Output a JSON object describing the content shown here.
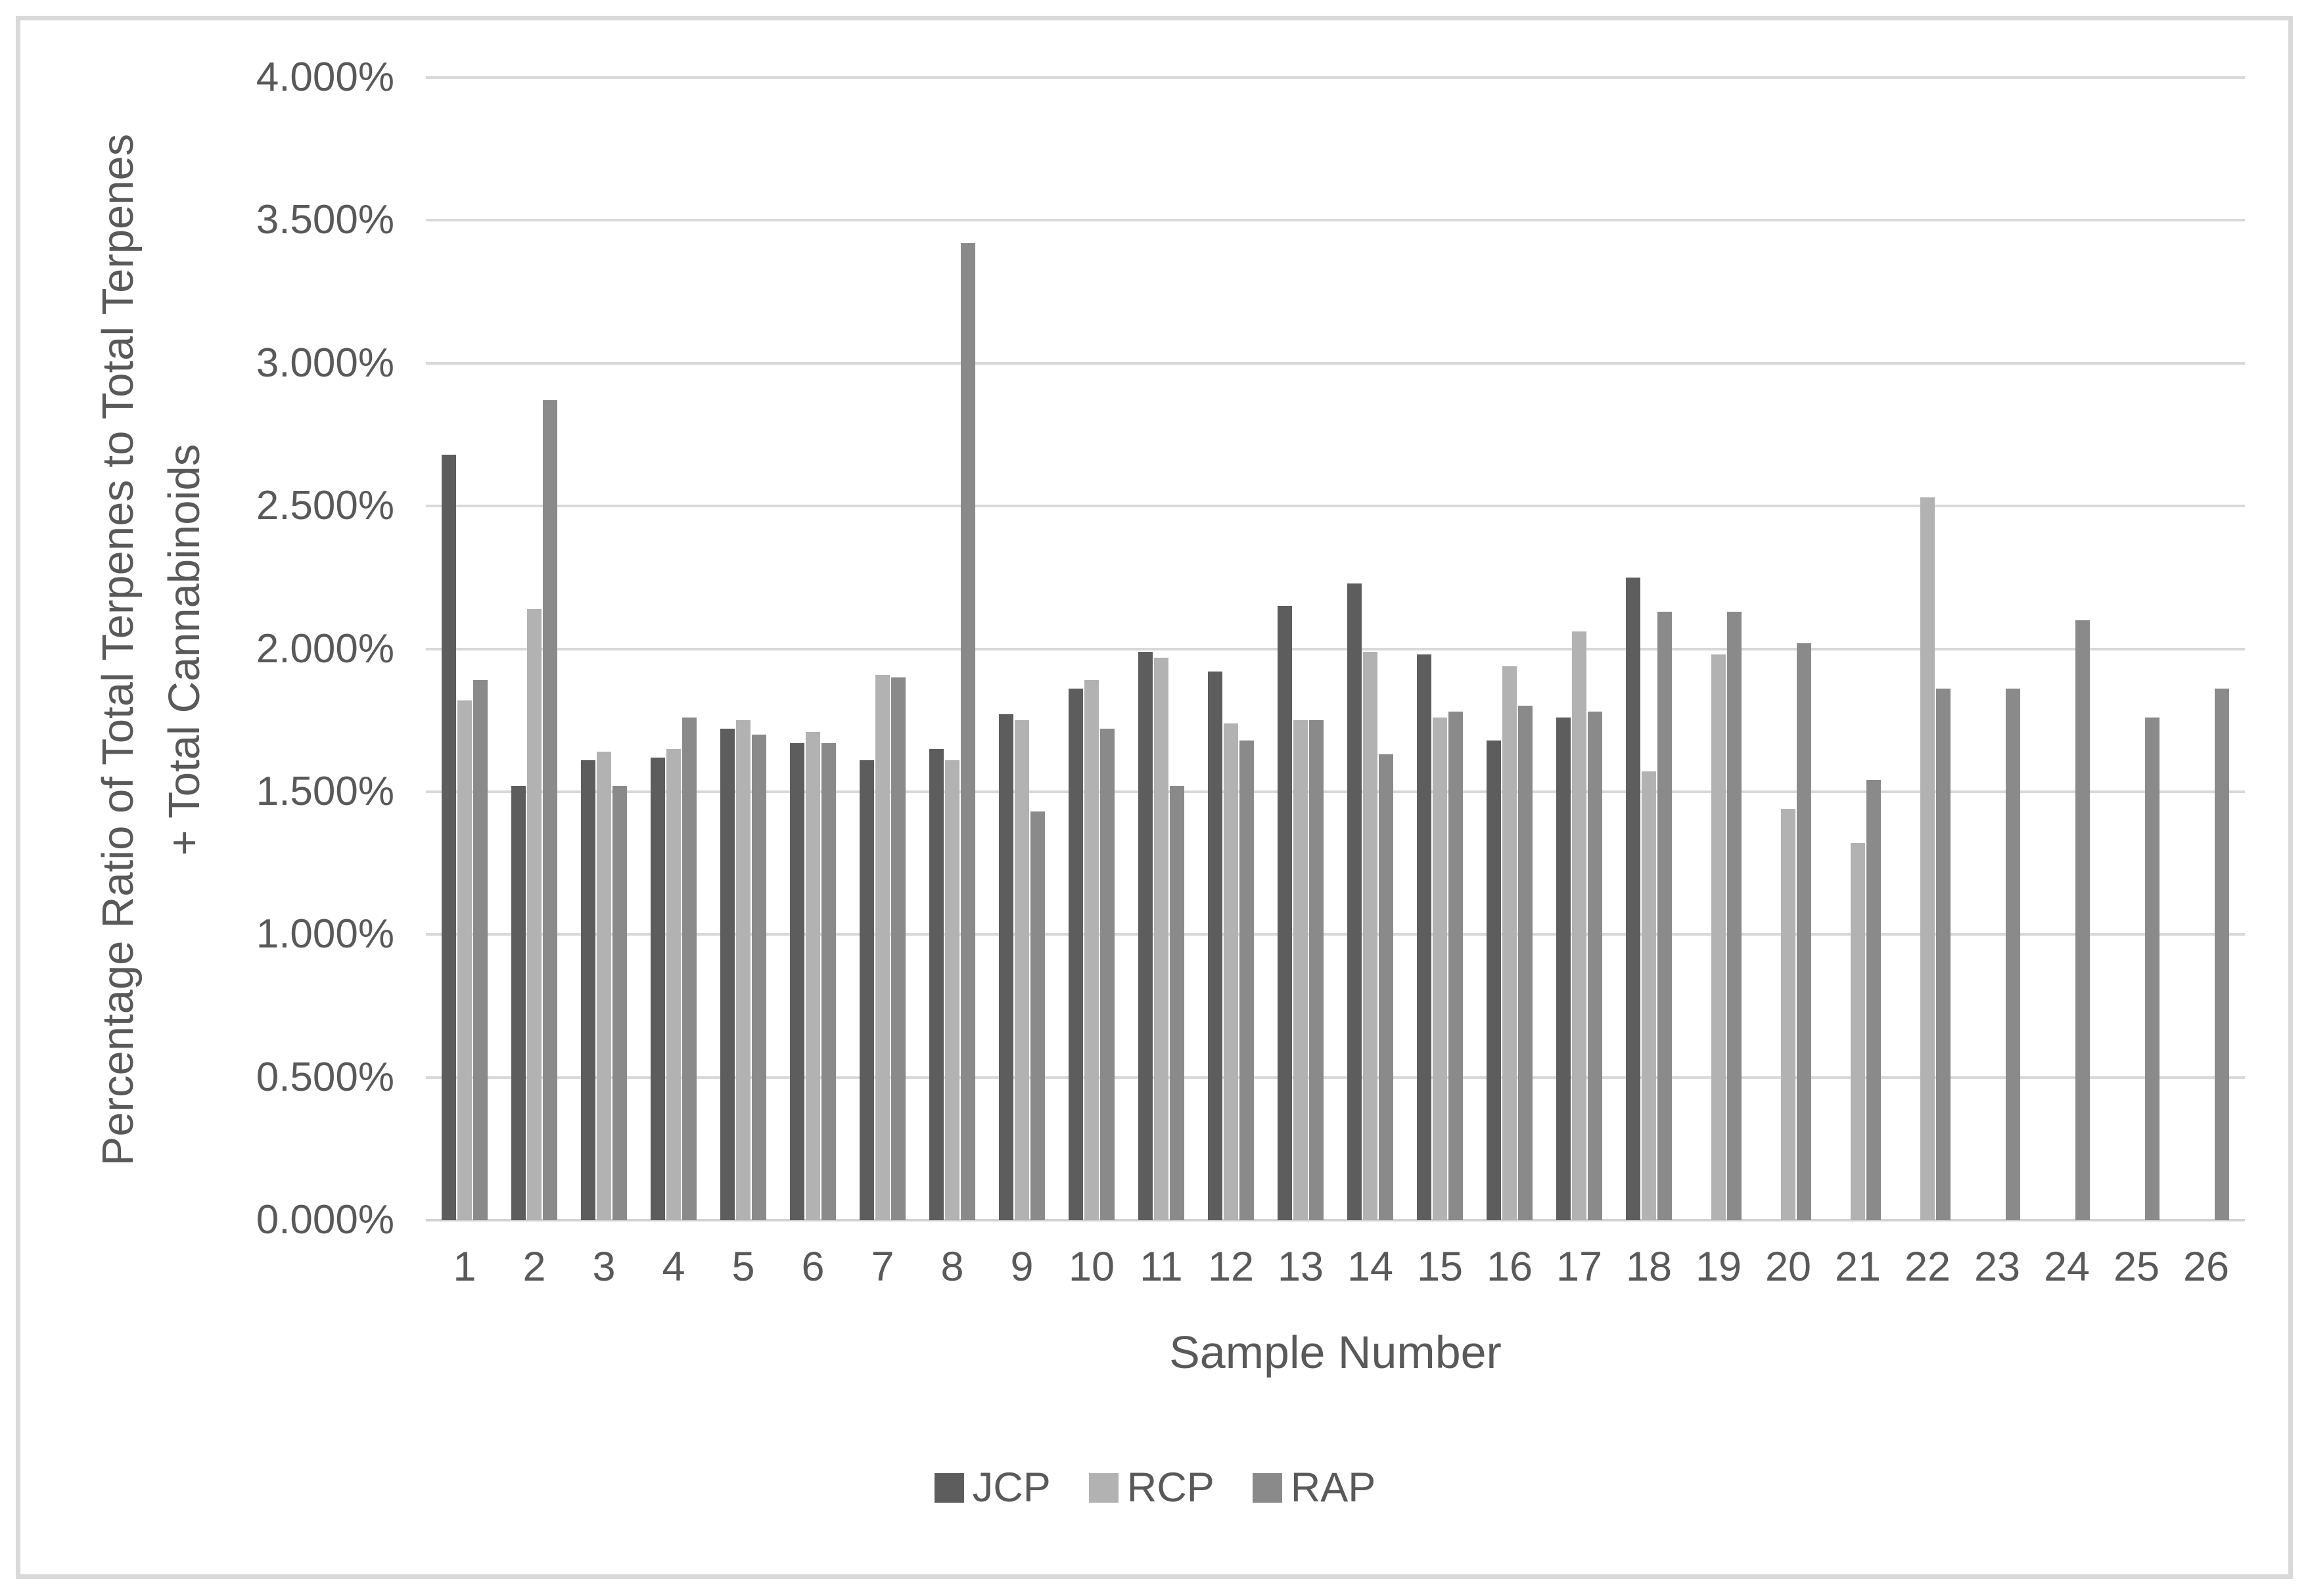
{
  "figure": {
    "x_axis_title": "Sample Number",
    "y_axis_title_line1": "Percentage Ratio of Total Terpenes to Total Terpenes",
    "y_axis_title_line2": "+ Total Cannabinoids"
  },
  "colors": {
    "jcp": "#5d5d5d",
    "rcp": "#b2b2b2",
    "rap": "#8a8a8a",
    "gridline": "#d9d9d9",
    "text": "#595959",
    "frame_border": "#d9d9d9"
  },
  "chart_data": {
    "type": "bar",
    "title": "",
    "xlabel": "Sample Number",
    "ylabel": "Percentage Ratio of Total Terpenes to Total Terpenes + Total Cannabinoids",
    "grid": true,
    "legend_position": "bottom",
    "ylim": [
      0,
      4
    ],
    "y_tick_step": 0.5,
    "y_tick_labels": [
      "0.000%",
      "0.500%",
      "1.000%",
      "1.500%",
      "2.000%",
      "2.500%",
      "3.000%",
      "3.500%",
      "4.000%"
    ],
    "categories": [
      "1",
      "2",
      "3",
      "4",
      "5",
      "6",
      "7",
      "8",
      "9",
      "10",
      "11",
      "12",
      "13",
      "14",
      "15",
      "16",
      "17",
      "18",
      "19",
      "20",
      "21",
      "22",
      "23",
      "24",
      "25",
      "26"
    ],
    "series": [
      {
        "name": "JCP",
        "color": "#5d5d5d",
        "values": [
          2.68,
          1.52,
          1.61,
          1.62,
          1.72,
          1.67,
          1.61,
          1.65,
          1.77,
          1.86,
          1.99,
          1.92,
          2.15,
          2.23,
          1.98,
          1.68,
          1.76,
          2.25,
          null,
          null,
          null,
          null,
          null,
          null,
          null,
          null
        ]
      },
      {
        "name": "RCP",
        "color": "#b2b2b2",
        "values": [
          1.82,
          2.14,
          1.64,
          1.65,
          1.75,
          1.71,
          1.91,
          1.61,
          1.75,
          1.89,
          1.97,
          1.74,
          1.75,
          1.99,
          1.76,
          1.94,
          2.06,
          1.57,
          1.98,
          1.44,
          1.32,
          2.53,
          null,
          null,
          null,
          null
        ]
      },
      {
        "name": "RAP",
        "color": "#8a8a8a",
        "values": [
          1.89,
          2.87,
          1.52,
          1.76,
          1.7,
          1.67,
          1.9,
          3.42,
          1.43,
          1.72,
          1.52,
          1.68,
          1.75,
          1.63,
          1.78,
          1.8,
          1.78,
          2.13,
          2.13,
          2.02,
          1.54,
          1.86,
          1.86,
          2.1,
          1.76,
          1.86
        ]
      }
    ]
  }
}
